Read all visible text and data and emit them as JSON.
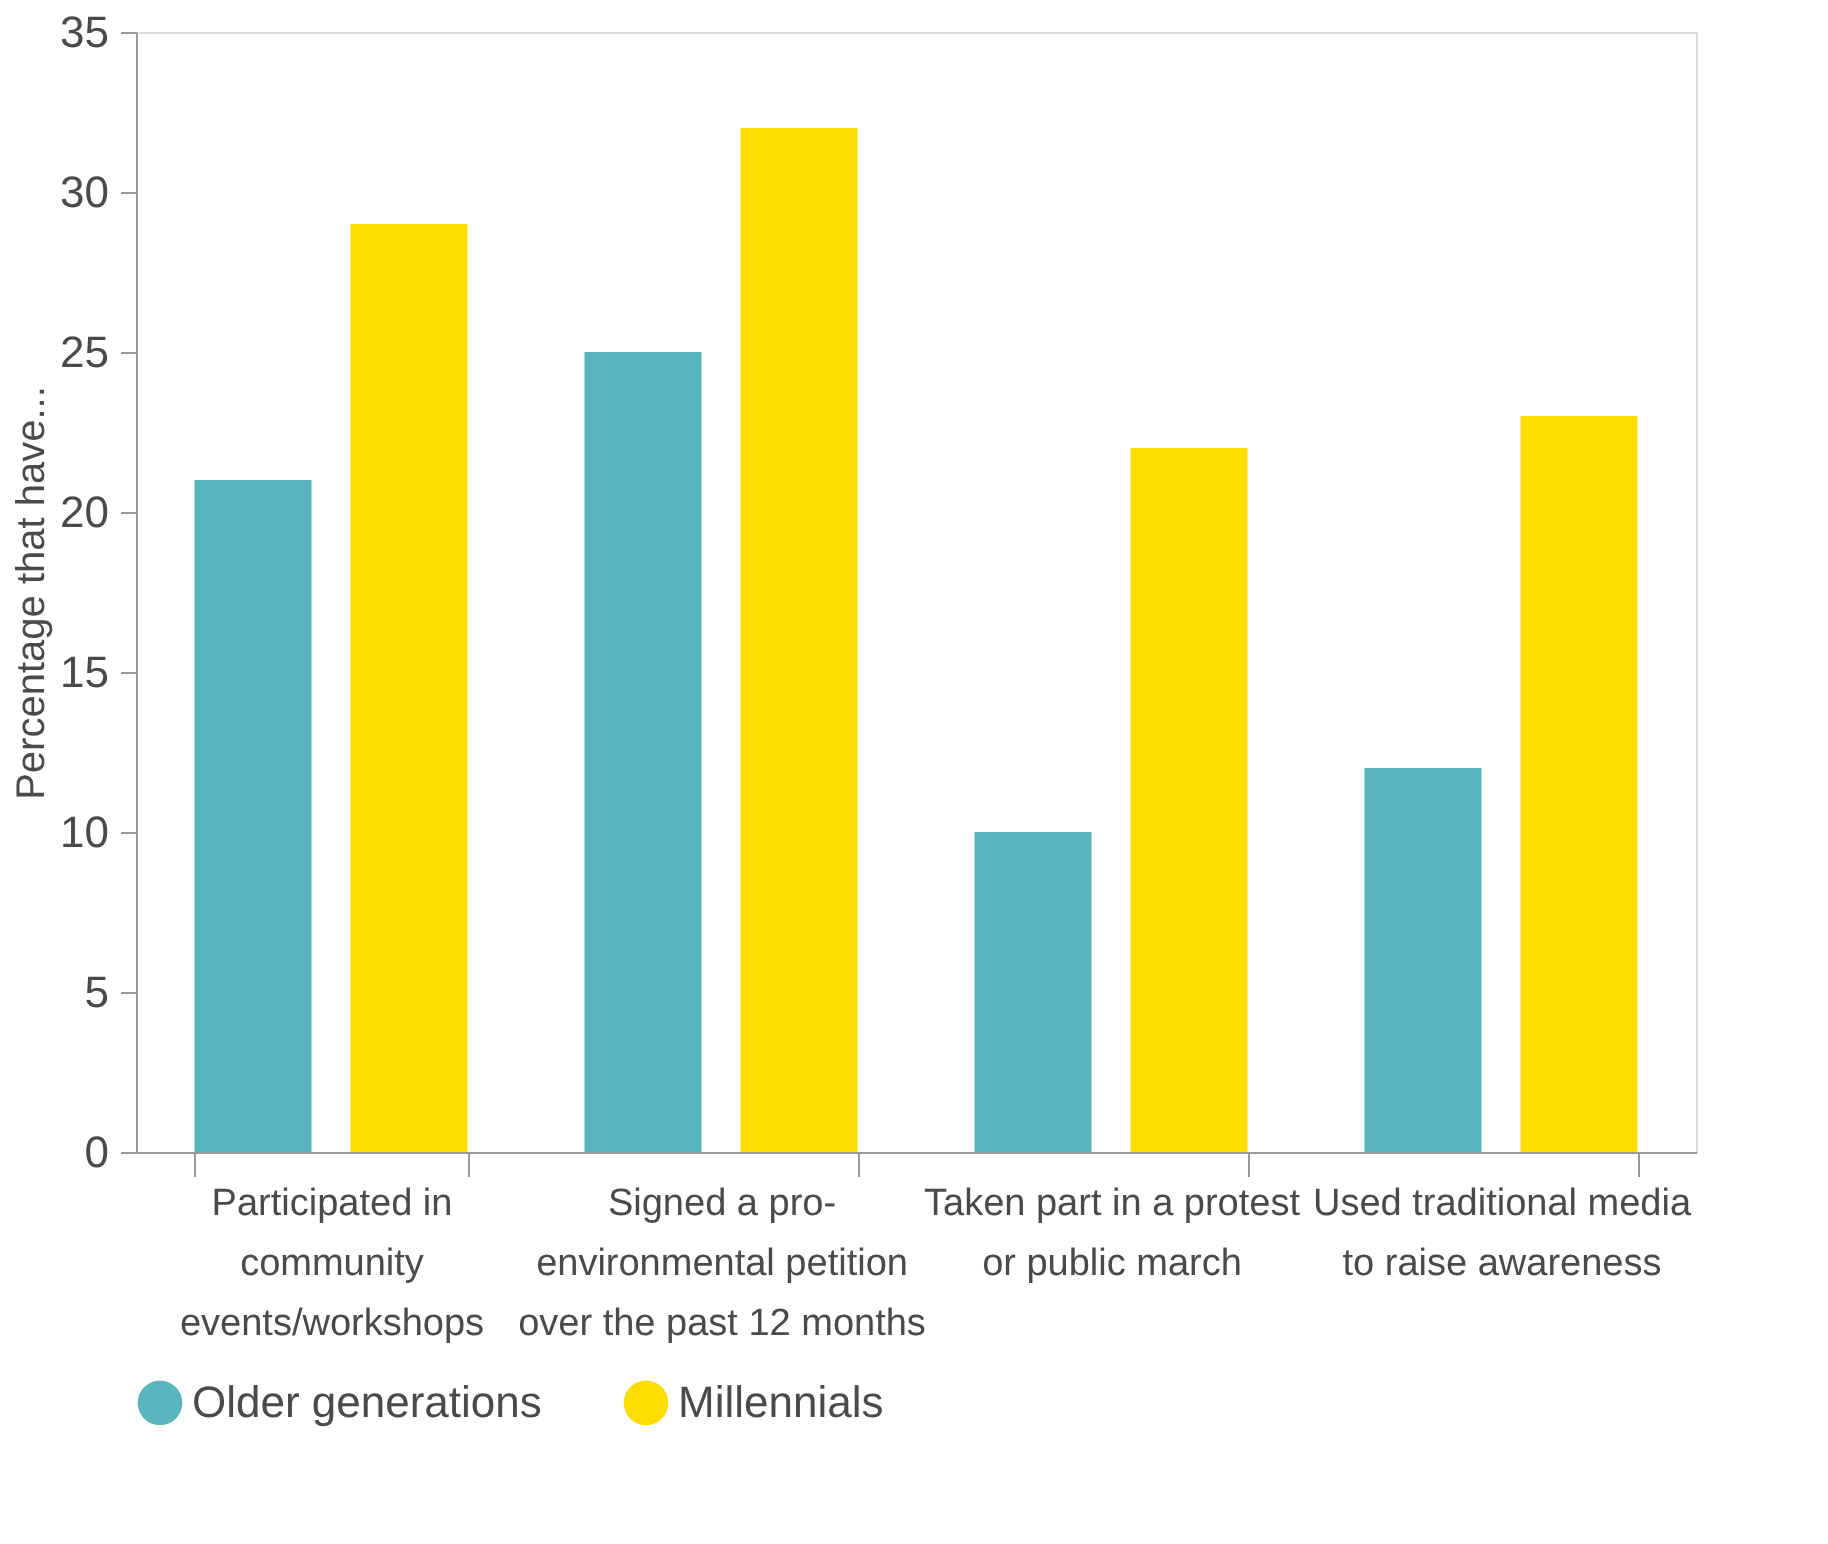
{
  "chart_data": {
    "type": "bar",
    "ylabel": "Percentage that have...",
    "categories": [
      "Participated in community events/workshops",
      "Signed a pro-environmental petition over the past 12 months",
      "Taken part in a protest or public march",
      "Used traditional media to raise awareness"
    ],
    "series": [
      {
        "name": "Older generations",
        "color": "#5bb5bf",
        "values": [
          21,
          25,
          10,
          12
        ]
      },
      {
        "name": "Millennials",
        "color": "#fddc00",
        "values": [
          29,
          32,
          22,
          23
        ]
      }
    ],
    "ylim": [
      0,
      35
    ],
    "yticks": [
      0,
      5,
      10,
      15,
      20,
      25,
      30,
      35
    ],
    "grid": false,
    "legend": "bottom"
  }
}
